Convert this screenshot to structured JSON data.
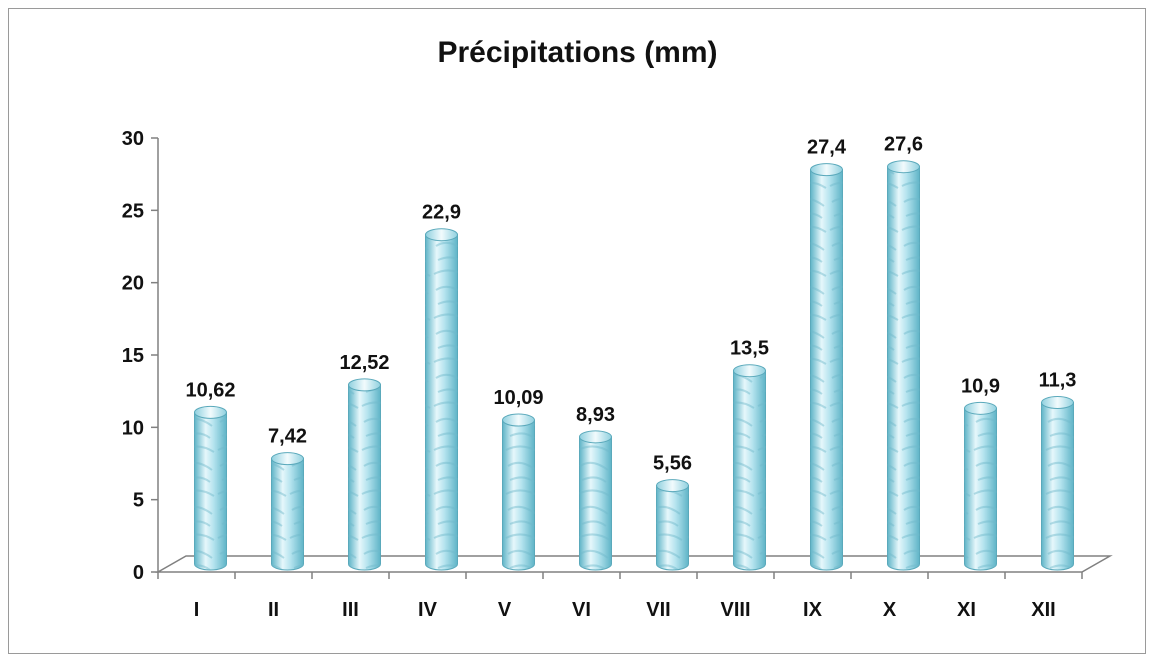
{
  "chart_data": {
    "type": "bar",
    "title": "Précipitations (mm)",
    "xlabel": "",
    "ylabel": "",
    "categories": [
      "I",
      "II",
      "III",
      "IV",
      "V",
      "VI",
      "VII",
      "VIII",
      "IX",
      "X",
      "XI",
      "XII"
    ],
    "values": [
      10.62,
      7.42,
      12.52,
      22.9,
      10.09,
      8.93,
      5.56,
      13.5,
      27.4,
      27.6,
      10.9,
      11.3
    ],
    "data_labels": [
      "10,62",
      "7,42",
      "12,52",
      "22,9",
      "10,09",
      "8,93",
      "5,56",
      "13,5",
      "27,4",
      "27,6",
      "10,9",
      "11,3"
    ],
    "ylim": [
      0,
      30
    ],
    "yticks": [
      "0",
      "5",
      "10",
      "15",
      "20",
      "25",
      "30"
    ],
    "grid": false,
    "legend": "none",
    "colors": {
      "bar_fill": "#9ed9e6",
      "bar_highlight": "#e6f7fb",
      "bar_shadow": "#5fb4c7",
      "axis": "#808080"
    }
  }
}
